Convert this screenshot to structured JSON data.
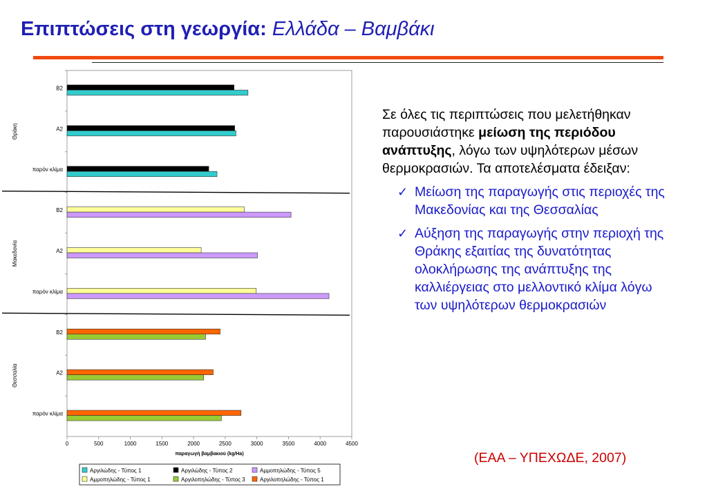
{
  "title": {
    "main": "Επιπτώσεις στη γεωργία:",
    "sub": "Ελλάδα – Βαμβάκι"
  },
  "text": {
    "intro_before": "Σε όλες τις περιπτώσεις που μελετήθηκαν παρουσιάστηκε ",
    "intro_bold": "μείωση της περιόδου ανάπτυξης",
    "intro_after": ", λόγω των υψηλότερων μέσων θερμοκρασιών. Τα αποτελέσματα έδειξαν:",
    "bullets": [
      "Μείωση της παραγωγής στις περιοχές της Μακεδονίας και της Θεσσαλίας",
      "Αύξηση της παραγωγής στην περιοχή της Θράκης εξαιτίας της δυνατότητας ολοκλήρωσης της ανάπτυξης της καλλιέργειας στο μελλοντικό κλίμα λόγω των υψηλότερων θερμοκρασιών"
    ],
    "bullet_icon": "check-mark-icon"
  },
  "source": "(ΕΑΑ – ΥΠΕΧΩΔΕ, 2007)",
  "chart_data": {
    "type": "bar",
    "orientation": "horizontal",
    "xlabel": "παραγωγή βαμβακιού (kg/Ha)",
    "xlim": [
      0,
      4500
    ],
    "xticks": [
      0,
      500,
      1000,
      1500,
      2000,
      2500,
      3000,
      3500,
      4000,
      4500
    ],
    "legend_position": "bottom",
    "legend_entries": [
      {
        "name": "Αργιλώδης - Τύπος 1",
        "color": "#33cccc"
      },
      {
        "name": "Αργιλώδης - Τύπος 2",
        "color": "#000000"
      },
      {
        "name": "Αμμοπηλώδης - Τύπος 5",
        "color": "#cc99ff"
      },
      {
        "name": "Αμμοπηλώδης - Τύπος 1",
        "color": "#ffff99"
      },
      {
        "name": "Αργιλοπηλώδης - Τύπος 3",
        "color": "#99cc33"
      },
      {
        "name": "Αργιλοπηλώδης - Τύπος 1",
        "color": "#ff6600"
      }
    ],
    "groups": [
      {
        "region": "Θράκη",
        "categories": [
          {
            "label": "B2",
            "bars": [
              {
                "series": "Αργιλώδης - Τύπος 2",
                "value": 2640
              },
              {
                "series": "Αργιλώδης - Τύπος 1",
                "value": 2860
              }
            ]
          },
          {
            "label": "A2",
            "bars": [
              {
                "series": "Αργιλώδης - Τύπος 2",
                "value": 2650
              },
              {
                "series": "Αργιλώδης - Τύπος 1",
                "value": 2670
              }
            ]
          },
          {
            "label": "παρόν κλίμα",
            "bars": [
              {
                "series": "Αργιλώδης - Τύπος 2",
                "value": 2240
              },
              {
                "series": "Αργιλώδης - Τύπος 1",
                "value": 2370
              }
            ]
          }
        ]
      },
      {
        "region": "Μακεδονία",
        "categories": [
          {
            "label": "B2",
            "bars": [
              {
                "series": "Αμμοπηλώδης - Τύπος 1",
                "value": 2800
              },
              {
                "series": "Αμμοπηλώδης - Τύπος 5",
                "value": 3540
              }
            ]
          },
          {
            "label": "A2",
            "bars": [
              {
                "series": "Αμμοπηλώδης - Τύπος 1",
                "value": 2120
              },
              {
                "series": "Αμμοπηλώδης - Τύπος 5",
                "value": 3010
              }
            ]
          },
          {
            "label": "παρόν κλίμα",
            "bars": [
              {
                "series": "Αμμοπηλώδης - Τύπος 1",
                "value": 2990
              },
              {
                "series": "Αμμοπηλώδης - Τύπος 5",
                "value": 4140
              }
            ]
          }
        ]
      },
      {
        "region": "Θεσσαλία",
        "categories": [
          {
            "label": "B2",
            "bars": [
              {
                "series": "Αργιλοπηλώδης - Τύπος 1",
                "value": 2420
              },
              {
                "series": "Αργιλοπηλώδης - Τύπος 3",
                "value": 2190
              }
            ]
          },
          {
            "label": "A2",
            "bars": [
              {
                "series": "Αργιλοπηλώδης - Τύπος 1",
                "value": 2310
              },
              {
                "series": "Αργιλοπηλώδης - Τύπος 3",
                "value": 2160
              }
            ]
          },
          {
            "label": "παρόν κλίμα",
            "bars": [
              {
                "series": "Αργιλοπηλώδης - Τύπος 1",
                "value": 2750
              },
              {
                "series": "Αργιλοπηλώδης - Τύπος 3",
                "value": 2440
              }
            ]
          }
        ]
      }
    ]
  }
}
